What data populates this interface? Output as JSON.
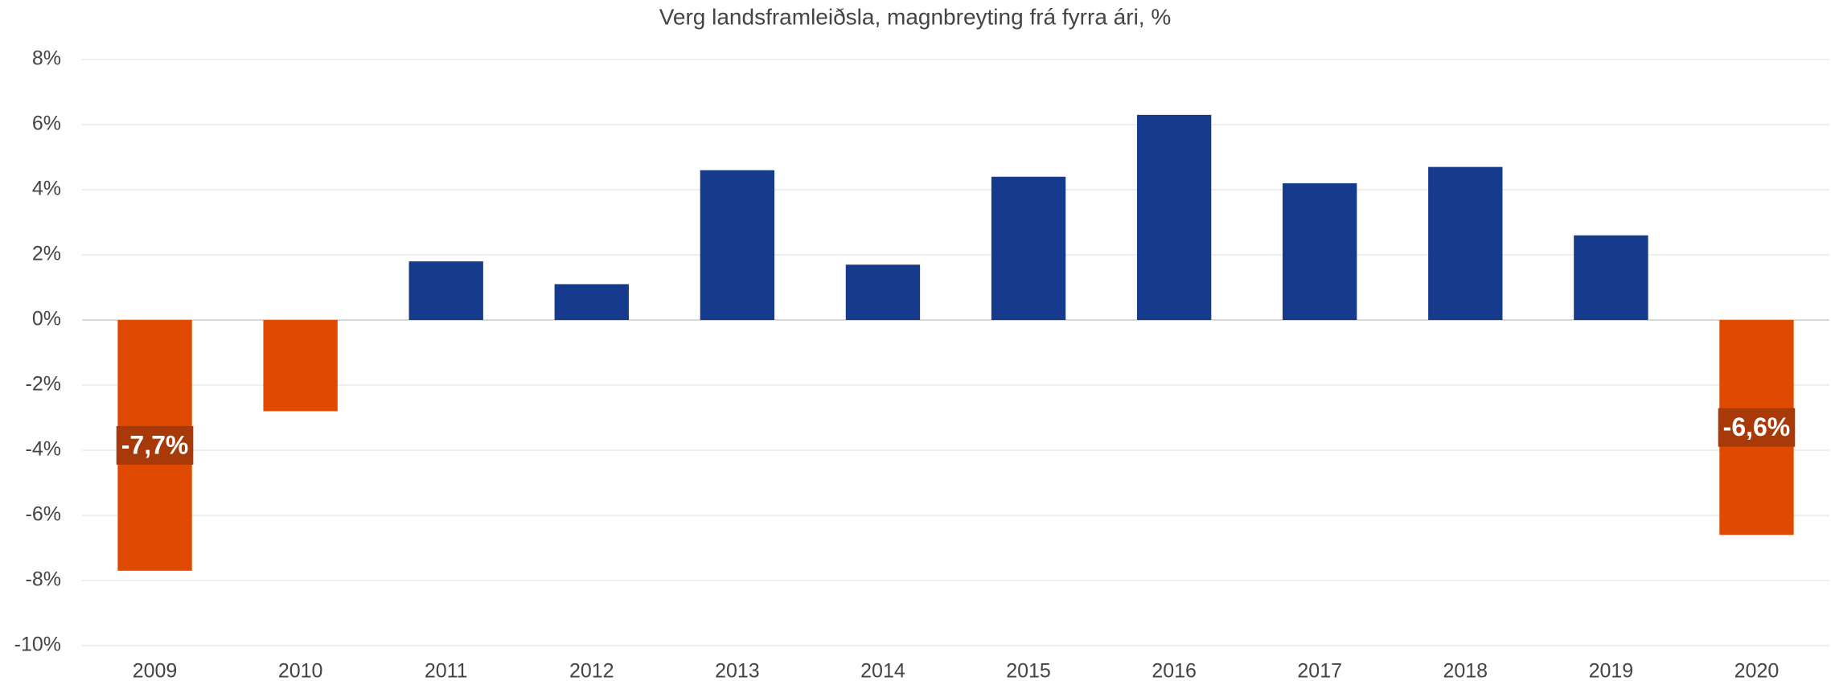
{
  "chart_data": {
    "type": "bar",
    "title": "Verg landsframleiðsla, magnbreyting frá fyrra ári, %",
    "categories": [
      "2009",
      "2010",
      "2011",
      "2012",
      "2013",
      "2014",
      "2015",
      "2016",
      "2017",
      "2018",
      "2019",
      "2020"
    ],
    "values": [
      -7.7,
      -2.8,
      1.8,
      1.1,
      4.6,
      1.7,
      4.4,
      6.3,
      4.2,
      4.7,
      2.6,
      -6.6
    ],
    "value_labels": [
      "-7,7%",
      null,
      null,
      null,
      null,
      null,
      null,
      null,
      null,
      null,
      null,
      "-6,6%"
    ],
    "colors": [
      "#e04a00",
      "#e04a00",
      "#163a8c",
      "#163a8c",
      "#163a8c",
      "#163a8c",
      "#163a8c",
      "#163a8c",
      "#163a8c",
      "#163a8c",
      "#163a8c",
      "#e04a00"
    ],
    "label_color": "#a83a0a",
    "ylim": [
      -10,
      8
    ],
    "yticks": [
      {
        "value": -10,
        "label": "-10%"
      },
      {
        "value": -8,
        "label": "-8%"
      },
      {
        "value": -6,
        "label": "-6%"
      },
      {
        "value": -4,
        "label": "-4%"
      },
      {
        "value": -2,
        "label": "-2%"
      },
      {
        "value": 0,
        "label": "0%"
      },
      {
        "value": 2,
        "label": "2%"
      },
      {
        "value": 4,
        "label": "4%"
      },
      {
        "value": 6,
        "label": "6%"
      },
      {
        "value": 8,
        "label": "8%"
      }
    ],
    "grid": true
  }
}
